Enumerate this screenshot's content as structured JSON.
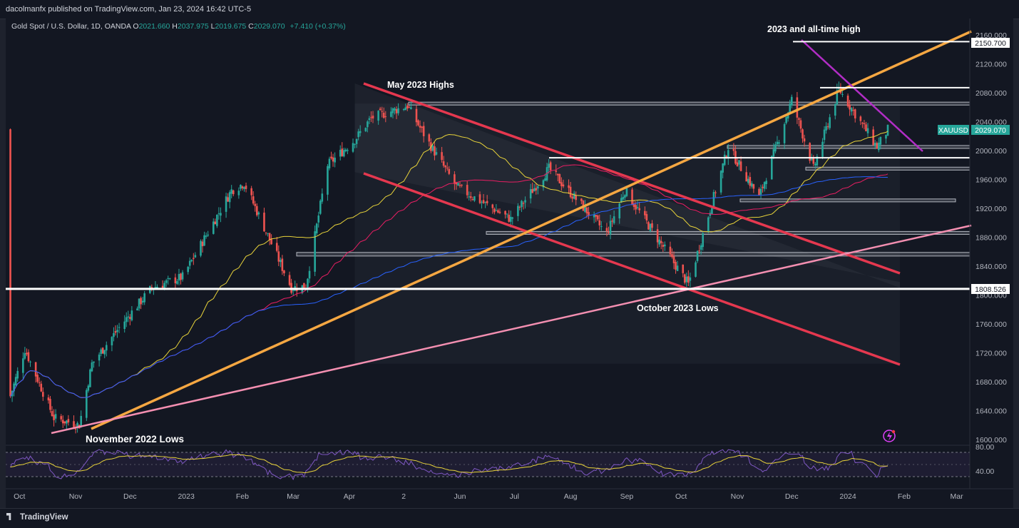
{
  "header": {
    "published": "dacolmanfx published on TradingView.com, Jan 23, 2024 16:42 UTC-5"
  },
  "symbol_line": {
    "title": "Gold Spot / U.S. Dollar, 1D, OANDA",
    "o_label": "O",
    "o": "2021.660",
    "h_label": "H",
    "h": "2037.975",
    "l_label": "L",
    "l": "2019.675",
    "c_label": "C",
    "c": "2029.070",
    "change": "+7.410 (+0.37%)"
  },
  "footer": {
    "brand": "TradingView"
  },
  "colors": {
    "background": "#131722",
    "up": "#26a69a",
    "down": "#ef5350",
    "channel_red": "#e5384f",
    "trend_orange": "#f5a742",
    "trend_pink": "#f48fb1",
    "trend_purple": "#b22dc6",
    "sma_yellow": "#e8d33a",
    "sma_red": "#e91e63",
    "sma_blue": "#2962ff"
  },
  "chart_data": {
    "type": "candlestick",
    "title": "Gold Spot / U.S. Dollar, 1D, OANDA",
    "xlabel": "",
    "ylabel": "",
    "ylim": [
      1590,
      2170
    ],
    "grid": false,
    "x_tick_labels": [
      "Oct",
      "Nov",
      "Dec",
      "2023",
      "Feb",
      "Mar",
      "Apr",
      "2",
      "Jun",
      "Jul",
      "Aug",
      "Sep",
      "Oct",
      "Nov",
      "Dec",
      "2024",
      "Feb",
      "Mar"
    ],
    "y_tick_labels": [
      "2160.000",
      "2120.000",
      "2080.000",
      "2040.000",
      "2000.000",
      "1960.000",
      "1920.000",
      "1880.000",
      "1840.000",
      "1800.000",
      "1760.000",
      "1720.000",
      "1680.000",
      "1640.000",
      "1600.000"
    ],
    "price_path": [
      {
        "x": "2022-09-26",
        "y": 1660
      },
      {
        "x": "2022-10-04",
        "y": 1725
      },
      {
        "x": "2022-10-20",
        "y": 1630
      },
      {
        "x": "2022-11-03",
        "y": 1620
      },
      {
        "x": "2022-11-10",
        "y": 1705
      },
      {
        "x": "2022-11-25",
        "y": 1755
      },
      {
        "x": "2022-12-13",
        "y": 1810
      },
      {
        "x": "2022-12-30",
        "y": 1825
      },
      {
        "x": "2023-01-26",
        "y": 1945
      },
      {
        "x": "2023-02-02",
        "y": 1955
      },
      {
        "x": "2023-02-28",
        "y": 1810
      },
      {
        "x": "2023-03-08",
        "y": 1812
      },
      {
        "x": "2023-03-20",
        "y": 1980
      },
      {
        "x": "2023-04-04",
        "y": 2015
      },
      {
        "x": "2023-04-13",
        "y": 2045
      },
      {
        "x": "2023-05-03",
        "y": 2062
      },
      {
        "x": "2023-05-15",
        "y": 2010
      },
      {
        "x": "2023-05-30",
        "y": 1950
      },
      {
        "x": "2023-06-29",
        "y": 1905
      },
      {
        "x": "2023-07-20",
        "y": 1975
      },
      {
        "x": "2023-08-21",
        "y": 1885
      },
      {
        "x": "2023-08-31",
        "y": 1945
      },
      {
        "x": "2023-10-05",
        "y": 1815
      },
      {
        "x": "2023-10-27",
        "y": 2005
      },
      {
        "x": "2023-11-13",
        "y": 1935
      },
      {
        "x": "2023-12-01",
        "y": 2070
      },
      {
        "x": "2023-12-13",
        "y": 1975
      },
      {
        "x": "2023-12-27",
        "y": 2085
      },
      {
        "x": "2024-01-17",
        "y": 2005
      },
      {
        "x": "2024-01-23",
        "y": 2029.07
      }
    ],
    "series": [
      {
        "name": "XAUUSD",
        "last": "2029.070"
      }
    ],
    "price_labels": [
      "2150.700",
      "1808.526",
      "2029.070"
    ],
    "annotations": [
      "2023 and all-time high",
      "May 2023 Highs",
      "October 2023 Lows",
      "November 2022 Lows"
    ],
    "rsi": {
      "y_tick_labels": [
        "80.00",
        "40.00"
      ]
    }
  },
  "chart_labels": {
    "ath": "2023 and all-time high",
    "may_highs": "May 2023 Highs",
    "oct_lows": "October 2023 Lows",
    "nov_lows": "November 2022 Lows",
    "price_2150": "2150.700",
    "price_1808": "1808.526",
    "xau_name": "XAUUSD",
    "xau_price": "2029.070"
  }
}
